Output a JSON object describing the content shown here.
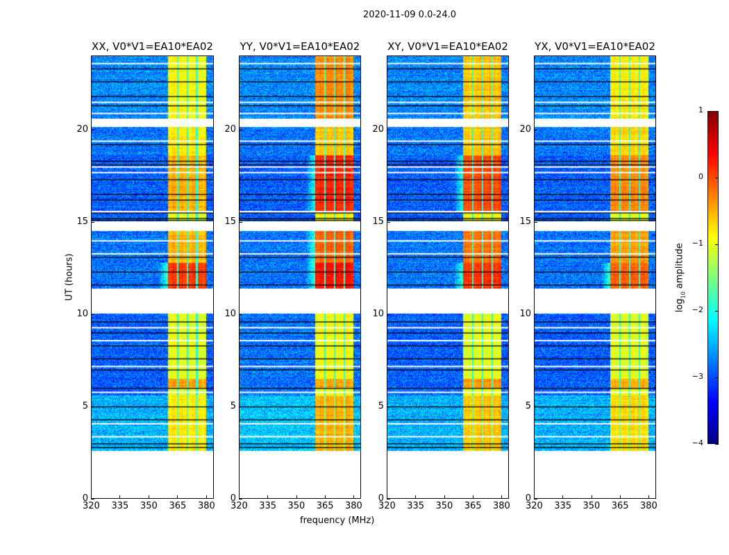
{
  "suptitle": "2020-11-09 0.0-24.0",
  "chart_data": {
    "type": "heatmap",
    "title": "2020-11-09 0.0-24.0",
    "xlabel": "frequency (MHz)",
    "ylabel": "UT (hours)",
    "xlim": [
      320,
      384
    ],
    "ylim": [
      0,
      24
    ],
    "xticks": [
      320,
      335,
      350,
      365,
      380
    ],
    "yticks": [
      0,
      5,
      10,
      15,
      20
    ],
    "colorbar": {
      "label_pre": "log",
      "label_sub": "10",
      "label_post": " amplitude",
      "range": [
        -4,
        1
      ],
      "ticks": [
        1,
        0,
        -1,
        -2,
        -3,
        -4
      ],
      "colormap": "jet"
    },
    "high_band_mhz": [
      360,
      380
    ],
    "notch_channels_mhz": [
      365,
      370,
      375
    ],
    "data_gaps_hours": [
      [
        0,
        2.6
      ],
      [
        10.05,
        11.4
      ],
      [
        14.5,
        15.05
      ],
      [
        20.15,
        20.6
      ]
    ],
    "flagged_black_lines_hours": [
      23.3,
      22.6,
      21.8,
      21.3,
      19.2,
      18.3,
      18.1,
      17.3,
      16.5,
      16.2,
      15.5,
      15.2,
      15.1,
      13.1,
      12.3,
      11.6,
      9.6,
      9.0,
      8.3,
      7.6,
      7.0,
      6.0,
      5.0,
      4.3,
      3.0,
      2.8
    ],
    "blank_white_lines_hours": [
      23.6,
      21.5,
      20.9,
      19.4,
      18.0,
      17.7,
      14.0,
      13.3,
      9.3,
      8.6,
      7.2,
      5.8,
      4.1,
      3.4
    ],
    "panels": [
      {
        "title": "XX, V0*V1=EA10*EA02",
        "blocks": [
          [
            2.6,
            5.6,
            -2.5,
            -0.8
          ],
          [
            5.6,
            6.0,
            -2.9,
            -1.0
          ],
          [
            6.0,
            6.5,
            -2.9,
            -0.4
          ],
          [
            6.5,
            10.05,
            -2.9,
            -1.0
          ],
          [
            11.4,
            12.8,
            -2.8,
            0.1
          ],
          [
            12.8,
            14.5,
            -2.8,
            -0.5
          ],
          [
            15.05,
            15.5,
            -2.9,
            -1.0
          ],
          [
            15.6,
            18.6,
            -2.9,
            -0.5
          ],
          [
            18.6,
            20.15,
            -2.8,
            -0.8
          ],
          [
            20.6,
            24,
            -2.7,
            -0.9
          ]
        ]
      },
      {
        "title": "YY, V0*V1=EA10*EA02",
        "blocks": [
          [
            2.6,
            5.6,
            -2.4,
            -0.5
          ],
          [
            5.6,
            6.0,
            -2.8,
            -1.0
          ],
          [
            6.0,
            6.5,
            -2.8,
            -0.4
          ],
          [
            6.5,
            10.05,
            -2.8,
            -0.9
          ],
          [
            11.4,
            12.8,
            -2.8,
            0.3
          ],
          [
            12.8,
            14.5,
            -2.8,
            -0.1
          ],
          [
            15.05,
            15.5,
            -2.9,
            -0.8
          ],
          [
            15.6,
            18.6,
            -2.9,
            0.2
          ],
          [
            18.6,
            20.15,
            -2.8,
            -0.6
          ],
          [
            20.6,
            24,
            -2.7,
            -0.3
          ]
        ]
      },
      {
        "title": "XY, V0*V1=EA10*EA02",
        "blocks": [
          [
            2.6,
            5.6,
            -2.5,
            -0.6
          ],
          [
            5.6,
            6.0,
            -2.9,
            -1.0
          ],
          [
            6.0,
            6.5,
            -2.9,
            -0.4
          ],
          [
            6.5,
            10.05,
            -2.9,
            -1.0
          ],
          [
            11.4,
            12.8,
            -2.8,
            0.1
          ],
          [
            12.8,
            14.5,
            -2.8,
            -0.2
          ],
          [
            15.05,
            15.5,
            -2.9,
            -0.9
          ],
          [
            15.6,
            18.6,
            -2.9,
            0.0
          ],
          [
            18.6,
            20.15,
            -2.8,
            -0.6
          ],
          [
            20.6,
            24,
            -2.7,
            -0.6
          ]
        ]
      },
      {
        "title": "YX, V0*V1=EA10*EA02",
        "blocks": [
          [
            2.6,
            5.6,
            -2.5,
            -0.7
          ],
          [
            5.6,
            6.0,
            -2.9,
            -1.0
          ],
          [
            6.0,
            6.5,
            -2.9,
            -0.5
          ],
          [
            6.5,
            10.05,
            -2.9,
            -1.0
          ],
          [
            11.4,
            12.8,
            -2.8,
            -0.1
          ],
          [
            12.8,
            14.5,
            -2.8,
            -0.4
          ],
          [
            15.05,
            15.5,
            -2.9,
            -1.0
          ],
          [
            15.6,
            18.6,
            -2.9,
            -0.3
          ],
          [
            18.6,
            20.15,
            -2.8,
            -0.7
          ],
          [
            20.6,
            24,
            -2.7,
            -0.8
          ]
        ]
      }
    ]
  }
}
